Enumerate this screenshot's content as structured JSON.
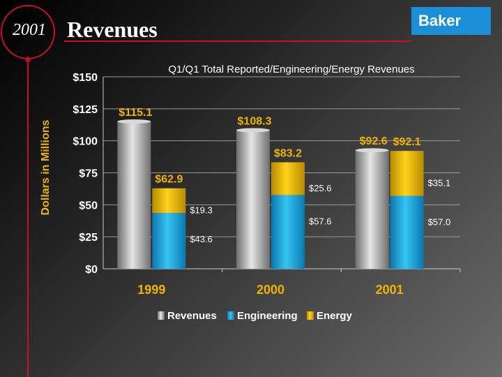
{
  "header": {
    "year": "2001",
    "title": "Revenues",
    "brand": "Baker"
  },
  "colors": {
    "revenues": "#a8a8a8",
    "engineering": "#1aa3d9",
    "energy": "#e8b800",
    "title_red": "#c8102e",
    "axis_text": "#ffffff",
    "label_yellow": "#f0b400"
  },
  "chart_data": {
    "type": "bar",
    "title": "Q1/Q1 Total Reported/Engineering/Energy Revenues",
    "ylabel": "Dollars in Millions",
    "xlabel": "",
    "ylim": [
      0,
      150
    ],
    "yticks": [
      0,
      25,
      50,
      75,
      100,
      125,
      150
    ],
    "ytick_labels": [
      "$0",
      "$25",
      "$50",
      "$75",
      "$100",
      "$125",
      "$150"
    ],
    "categories": [
      "1999",
      "2000",
      "2001"
    ],
    "series": [
      {
        "name": "Revenues",
        "values": [
          115.1,
          108.3,
          92.6
        ],
        "labels": [
          "$115.1",
          "$108.3",
          "$92.6"
        ]
      },
      {
        "name": "Engineering",
        "values": [
          43.6,
          57.6,
          57.0
        ],
        "labels": [
          "$43.6",
          "$57.6",
          "$57.0"
        ]
      },
      {
        "name": "Energy",
        "values": [
          19.3,
          25.6,
          35.1
        ],
        "labels": [
          "$19.3",
          "$25.6",
          "$35.1"
        ]
      }
    ],
    "stack_totals": [
      62.9,
      83.2,
      92.1
    ],
    "stack_total_labels": [
      "$62.9",
      "$83.2",
      "$92.1"
    ],
    "legend": [
      "Revenues",
      "Engineering",
      "Energy"
    ],
    "legend_position": "bottom",
    "grid": true
  }
}
